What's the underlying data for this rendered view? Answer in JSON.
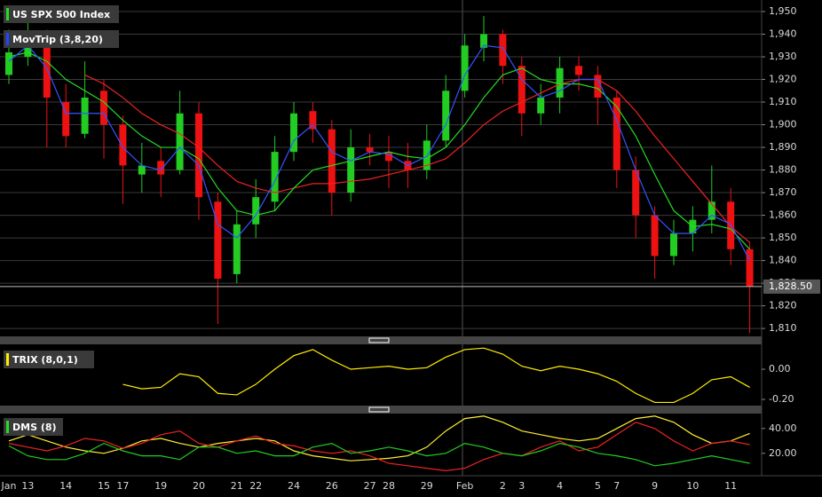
{
  "chart_data": [
    {
      "type": "candlestick",
      "title": "US SPX 500 Index",
      "label_color": "#22dd22",
      "indicator": "MovTrip (3,8,20)",
      "indicator_color": "#2244ff",
      "up_color": "#22cc22",
      "down_color": "#ee1111",
      "grid": true,
      "ylim": [
        1806.9,
        1955.1
      ],
      "yticks": [
        {
          "value": 1810,
          "label": "1,810"
        },
        {
          "value": 1820,
          "label": "1,820"
        },
        {
          "value": 1830,
          "label": "1,830"
        },
        {
          "value": 1840,
          "label": "1,840"
        },
        {
          "value": 1850,
          "label": "1,850"
        },
        {
          "value": 1860,
          "label": "1,860"
        },
        {
          "value": 1870,
          "label": "1,870"
        },
        {
          "value": 1880,
          "label": "1,880"
        },
        {
          "value": 1890,
          "label": "1,890"
        },
        {
          "value": 1900,
          "label": "1,900"
        },
        {
          "value": 1910,
          "label": "1,910"
        },
        {
          "value": 1920,
          "label": "1,920"
        },
        {
          "value": 1930,
          "label": "1,930"
        },
        {
          "value": 1940,
          "label": "1,940"
        },
        {
          "value": 1950,
          "label": "1,950"
        }
      ],
      "last_price": {
        "value": 1828.5,
        "label": "1,828.50"
      },
      "categories": [
        "Jan",
        "13",
        null,
        "14",
        null,
        "15",
        "17",
        null,
        "19",
        null,
        "20",
        null,
        "21",
        "22",
        null,
        "24",
        null,
        "26",
        null,
        "27",
        "28",
        null,
        "29",
        null,
        "Feb",
        null,
        "2",
        "3",
        null,
        "4",
        null,
        "5",
        "7",
        null,
        "9",
        null,
        "10",
        null,
        "11",
        null
      ],
      "ohlc": [
        [
          1922,
          1942,
          1918,
          1932
        ],
        [
          1930,
          1945,
          1926,
          1938
        ],
        [
          1938,
          1942,
          1890,
          1912
        ],
        [
          1910,
          1918,
          1890,
          1895
        ],
        [
          1896,
          1928,
          1894,
          1912
        ],
        [
          1915,
          1920,
          1885,
          1900
        ],
        [
          1900,
          1904,
          1865,
          1882
        ],
        [
          1878,
          1892,
          1870,
          1882
        ],
        [
          1884,
          1890,
          1868,
          1878
        ],
        [
          1880,
          1915,
          1878,
          1905
        ],
        [
          1905,
          1910,
          1858,
          1868
        ],
        [
          1866,
          1870,
          1812,
          1832
        ],
        [
          1834,
          1862,
          1830,
          1856
        ],
        [
          1856,
          1876,
          1850,
          1868
        ],
        [
          1866,
          1895,
          1862,
          1888
        ],
        [
          1888,
          1910,
          1884,
          1905
        ],
        [
          1906,
          1910,
          1892,
          1898
        ],
        [
          1898,
          1902,
          1860,
          1870
        ],
        [
          1870,
          1898,
          1866,
          1890
        ],
        [
          1890,
          1896,
          1882,
          1888
        ],
        [
          1888,
          1895,
          1872,
          1884
        ],
        [
          1884,
          1892,
          1872,
          1880
        ],
        [
          1880,
          1900,
          1876,
          1893
        ],
        [
          1893,
          1922,
          1890,
          1915
        ],
        [
          1915,
          1940,
          1912,
          1935
        ],
        [
          1934,
          1948,
          1928,
          1940
        ],
        [
          1940,
          1942,
          1918,
          1926
        ],
        [
          1926,
          1930,
          1895,
          1905
        ],
        [
          1905,
          1918,
          1900,
          1912
        ],
        [
          1912,
          1930,
          1905,
          1925
        ],
        [
          1926,
          1930,
          1915,
          1922
        ],
        [
          1922,
          1926,
          1900,
          1912
        ],
        [
          1912,
          1915,
          1872,
          1880
        ],
        [
          1880,
          1886,
          1850,
          1860
        ],
        [
          1860,
          1864,
          1832,
          1842
        ],
        [
          1842,
          1858,
          1838,
          1852
        ],
        [
          1852,
          1864,
          1844,
          1858
        ],
        [
          1858,
          1882,
          1852,
          1866
        ],
        [
          1866,
          1872,
          1838,
          1845
        ],
        [
          1845,
          1848,
          1808,
          1828.5
        ]
      ],
      "series": [
        {
          "color": "#ee2222",
          "values": [
            null,
            null,
            null,
            null,
            1922,
            1918,
            1912,
            1905,
            1900,
            1896,
            1890,
            1882,
            1875,
            1872,
            1870,
            1872,
            1874,
            1874,
            1875,
            1876,
            1878,
            1880,
            1882,
            1885,
            1892,
            1900,
            1906,
            1910,
            1914,
            1918,
            1920,
            1920,
            1915,
            1906,
            1895,
            1885,
            1875,
            1865,
            1855,
            1848
          ]
        },
        {
          "color": "#22dd22",
          "values": [
            1930,
            1932,
            1928,
            1920,
            1915,
            1910,
            1902,
            1895,
            1890,
            1890,
            1885,
            1872,
            1862,
            1860,
            1862,
            1872,
            1880,
            1882,
            1884,
            1886,
            1888,
            1886,
            1885,
            1890,
            1900,
            1912,
            1922,
            1925,
            1920,
            1918,
            1918,
            1916,
            1908,
            1895,
            1878,
            1862,
            1855,
            1856,
            1854,
            1845
          ]
        },
        {
          "color": "#3355ff",
          "values": [
            1928,
            1935,
            1925,
            1905,
            1905,
            1905,
            1890,
            1882,
            1880,
            1890,
            1882,
            1856,
            1850,
            1860,
            1875,
            1893,
            1900,
            1888,
            1884,
            1888,
            1887,
            1882,
            1886,
            1900,
            1922,
            1935,
            1934,
            1920,
            1912,
            1915,
            1920,
            1920,
            1902,
            1880,
            1860,
            1852,
            1852,
            1860,
            1856,
            1840
          ]
        }
      ]
    },
    {
      "type": "line",
      "title": "TRIX (8,0,1)",
      "label_color": "#ffee00",
      "grid": false,
      "ylim": [
        -0.235,
        0.153
      ],
      "yticks": [
        {
          "value": 0,
          "label": "0.00"
        },
        {
          "value": -0.2,
          "label": "-0.20"
        }
      ],
      "series": [
        {
          "color": "#ffee00",
          "values": [
            null,
            null,
            null,
            null,
            null,
            null,
            -0.1,
            -0.13,
            -0.12,
            -0.03,
            -0.05,
            -0.16,
            -0.17,
            -0.1,
            0.0,
            0.09,
            0.13,
            0.06,
            0.0,
            0.01,
            0.02,
            0.0,
            0.01,
            0.08,
            0.13,
            0.14,
            0.1,
            0.02,
            -0.01,
            0.02,
            0.0,
            -0.03,
            -0.08,
            -0.16,
            -0.22,
            -0.22,
            -0.16,
            -0.07,
            -0.05,
            -0.12
          ]
        }
      ]
    },
    {
      "type": "line",
      "title": "DMS (8)",
      "label_color": "#22dd22",
      "grid": false,
      "ylim": [
        2,
        52
      ],
      "yticks": [
        {
          "value": 20,
          "label": "20.00"
        },
        {
          "value": 40,
          "label": "40.00"
        }
      ],
      "series": [
        {
          "color": "#ffee33",
          "values": [
            30,
            35,
            30,
            25,
            22,
            20,
            24,
            30,
            32,
            28,
            25,
            28,
            30,
            32,
            30,
            22,
            18,
            16,
            14,
            15,
            16,
            18,
            25,
            38,
            48,
            50,
            45,
            38,
            35,
            32,
            30,
            32,
            40,
            48,
            50,
            45,
            35,
            28,
            30,
            36
          ]
        },
        {
          "color": "#ee2222",
          "values": [
            28,
            25,
            22,
            26,
            32,
            30,
            24,
            28,
            35,
            38,
            28,
            25,
            30,
            34,
            28,
            26,
            22,
            20,
            22,
            18,
            12,
            10,
            8,
            6,
            8,
            15,
            20,
            18,
            25,
            30,
            22,
            25,
            35,
            45,
            40,
            30,
            22,
            28,
            30,
            27
          ]
        },
        {
          "color": "#22cc22",
          "values": [
            26,
            18,
            15,
            15,
            20,
            28,
            22,
            18,
            18,
            15,
            25,
            25,
            20,
            22,
            18,
            18,
            25,
            28,
            20,
            22,
            25,
            22,
            18,
            20,
            28,
            25,
            20,
            18,
            22,
            28,
            25,
            20,
            18,
            15,
            10,
            12,
            15,
            18,
            15,
            12
          ]
        }
      ]
    }
  ]
}
